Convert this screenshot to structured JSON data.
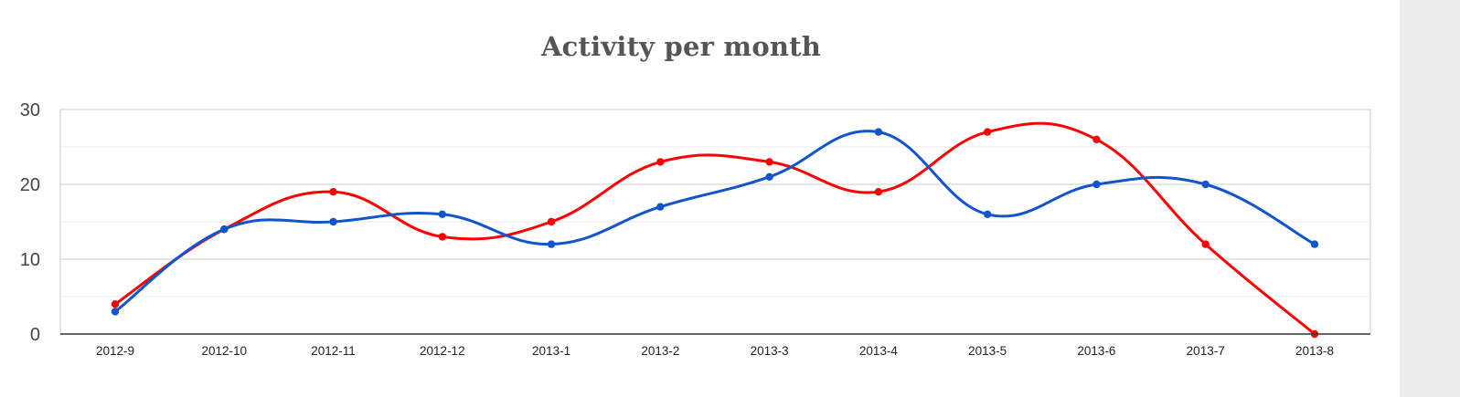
{
  "chart_data": {
    "type": "line",
    "title": "Activity per month",
    "xlabel": "",
    "ylabel": "",
    "categories": [
      "2012-9",
      "2012-10",
      "2012-11",
      "2012-12",
      "2013-1",
      "2013-2",
      "2013-3",
      "2013-4",
      "2013-5",
      "2013-6",
      "2013-7",
      "2013-8"
    ],
    "y_ticks": [
      "0",
      "10",
      "20",
      "30"
    ],
    "ylim": [
      0,
      30
    ],
    "grid": true,
    "smooth": true,
    "legend": "none",
    "series": [
      {
        "color": "#ff0000",
        "values": [
          4,
          14,
          19,
          13,
          15,
          23,
          23,
          19,
          27,
          26,
          12,
          0
        ]
      },
      {
        "color": "#1155cc",
        "values": [
          3,
          14,
          15,
          16,
          12,
          17,
          21,
          27,
          16,
          20,
          20,
          12
        ]
      }
    ]
  }
}
